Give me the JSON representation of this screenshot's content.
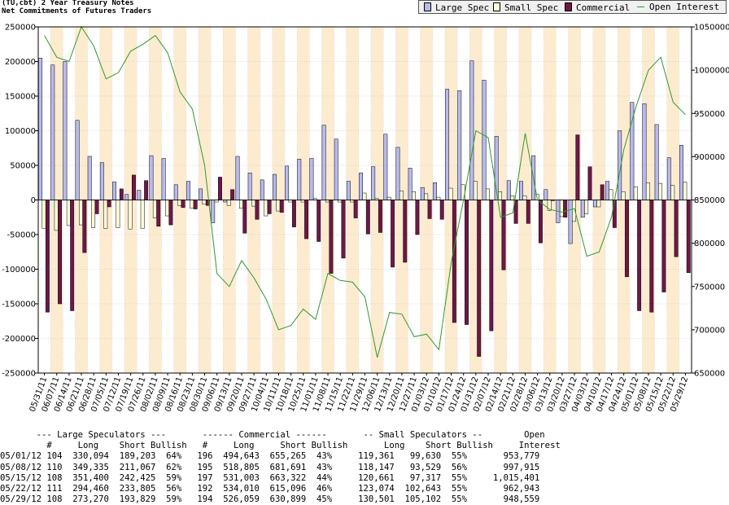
{
  "header": {
    "title": "(TU,cbt) 2 Year Treasury Notes",
    "subtitle": "Net Commitments of Futures Traders"
  },
  "legend": {
    "large_spec": "Large Spec",
    "small_spec": "Small Spec",
    "commercial": "Commercial",
    "open_interest": "Open Interest"
  },
  "colors": {
    "large": "#b8baee",
    "small": "#fffdd8",
    "commercial": "#6e1846",
    "oi": "#2e9a2e",
    "band_a": "#fdebd0",
    "band_b": "#ffffff"
  },
  "chart_data": {
    "type": "bar",
    "categories": [
      "05/31/11",
      "06/07/11",
      "06/14/11",
      "06/21/11",
      "06/28/11",
      "07/05/11",
      "07/12/11",
      "07/19/11",
      "07/26/11",
      "08/02/11",
      "08/09/11",
      "08/16/11",
      "08/23/11",
      "08/30/11",
      "09/06/11",
      "09/13/11",
      "09/20/11",
      "09/27/11",
      "10/04/11",
      "10/11/11",
      "10/18/11",
      "10/25/11",
      "11/01/11",
      "11/08/11",
      "11/15/11",
      "11/22/11",
      "11/29/11",
      "12/06/11",
      "12/13/11",
      "12/20/11",
      "12/27/11",
      "01/03/12",
      "01/10/12",
      "01/17/12",
      "01/24/12",
      "01/31/12",
      "02/07/12",
      "02/14/12",
      "02/21/12",
      "02/28/12",
      "03/06/12",
      "03/13/12",
      "03/20/12",
      "03/27/12",
      "04/03/12",
      "04/10/12",
      "04/17/12",
      "04/24/12",
      "05/01/12",
      "05/08/12",
      "05/15/12",
      "05/22/12",
      "05/29/12"
    ],
    "x_tick_labels": [
      "05/31/11",
      "06/07/11",
      "06/14/11",
      "06/21/11",
      "06/28/11",
      "07/05/11",
      "07/12/11",
      "07/19/11",
      "07/26/11",
      "08/02/11",
      "08/09/11",
      "08/16/11",
      "08/23/11",
      "08/30/11",
      "09/06/11",
      "09/13/11",
      "09/20/11",
      "09/27/11",
      "10/04/11",
      "10/11/11",
      "10/18/11",
      "10/25/11",
      "11/01/11",
      "11/08/11",
      "11/15/11",
      "11/22/11",
      "11/29/11",
      "12/06/11",
      "12/13/11",
      "12/20/11",
      "12/27/11",
      "01/03/12",
      "01/10/12",
      "01/17/12",
      "01/24/12",
      "01/31/12",
      "02/07/12",
      "02/14/12",
      "02/21/12",
      "02/28/12",
      "03/06/12",
      "03/13/12",
      "03/20/12",
      "03/27/12",
      "04/03/12",
      "04/10/12",
      "04/17/12",
      "04/24/12",
      "05/01/12",
      "05/08/12",
      "05/15/12",
      "05/22/12",
      "05/29/12"
    ],
    "series": [
      {
        "name": "Large Spec",
        "axis": "left",
        "values": [
          205000,
          195000,
          200000,
          115000,
          63000,
          54000,
          26000,
          8000,
          14000,
          64000,
          60000,
          22000,
          27000,
          16000,
          -33000,
          -3000,
          63000,
          39000,
          29000,
          37000,
          49000,
          59000,
          60000,
          108000,
          88000,
          27000,
          39000,
          48000,
          95000,
          76000,
          46000,
          18000,
          25000,
          160000,
          158000,
          201000,
          173000,
          92000,
          28000,
          27000,
          64000,
          15000,
          -33000,
          -63000,
          -25000,
          -10000,
          27000,
          100000,
          141000,
          139000,
          109000,
          61000,
          79000
        ]
      },
      {
        "name": "Small Spec",
        "axis": "left",
        "values": [
          -41000,
          -44000,
          -37000,
          -36000,
          -40000,
          -41000,
          -40000,
          -42000,
          -41000,
          -26000,
          -23000,
          -8000,
          -12000,
          -6000,
          -3000,
          -8000,
          -12000,
          -9000,
          -23000,
          -16000,
          -3000,
          -3000,
          2000,
          -3000,
          -3000,
          -3000,
          10000,
          2000,
          4000,
          13000,
          12000,
          9000,
          4000,
          17000,
          22000,
          27000,
          16000,
          12000,
          6000,
          6000,
          8000,
          -15000,
          -24000,
          -31000,
          -20000,
          -10000,
          15000,
          12000,
          19000,
          25000,
          24000,
          21000,
          26000
        ]
      },
      {
        "name": "Commercial",
        "axis": "left",
        "values": [
          -162000,
          -150000,
          -160000,
          -76000,
          -20000,
          -10000,
          16000,
          36000,
          28000,
          -38000,
          -36000,
          -11000,
          -13000,
          -8000,
          33000,
          15000,
          -48000,
          -28000,
          -20000,
          -18000,
          -39000,
          -56000,
          -60000,
          -106000,
          -84000,
          -26000,
          -49000,
          -47000,
          -97000,
          -90000,
          -50000,
          -27000,
          -28000,
          -177000,
          -180000,
          -226000,
          -189000,
          -101000,
          -34000,
          -34000,
          -62000,
          -1000,
          -25000,
          94000,
          48000,
          22000,
          -40000,
          -111000,
          -160000,
          -162000,
          -133000,
          -82000,
          -105000
        ]
      },
      {
        "name": "Open Interest",
        "axis": "right",
        "values": [
          1040000,
          1015000,
          1010000,
          1050000,
          1028000,
          990000,
          997000,
          1022000,
          1030000,
          1040000,
          1020000,
          975000,
          955000,
          890000,
          765000,
          750000,
          780000,
          760000,
          735000,
          700000,
          705000,
          724000,
          712000,
          765000,
          757000,
          755000,
          738000,
          668000,
          720000,
          718000,
          692000,
          695000,
          677000,
          778000,
          850000,
          930000,
          922000,
          830000,
          835000,
          927000,
          850000,
          839000,
          836000,
          840000,
          785000,
          790000,
          830000,
          908000,
          958000,
          1000000,
          1015000,
          963000,
          948559
        ]
      }
    ],
    "ylim_left": [
      -250000,
      250000
    ],
    "ylim_right": [
      650000,
      1050000
    ],
    "y_left_ticks": [
      "250000",
      "200000",
      "150000",
      "100000",
      "50000",
      "0",
      "-50000",
      "-100000",
      "-150000",
      "-200000",
      "-250000"
    ],
    "y_right_ticks": [
      "1050000",
      "1000000",
      "950000",
      "900000",
      "850000",
      "800000",
      "750000",
      "700000",
      "650000"
    ],
    "grid": true,
    "legend_position": "top-right"
  },
  "table": {
    "header1": "       --- Large Speculators ---       ------ Commercial ------       -- Small Speculators --        Open",
    "header2": "         #     Long    Short Bullish   #     Long     Short Bullish       Long    Short Bullish     Interest",
    "rows": [
      "05/01/12 104  330,094  189,203  64%   196  494,643  655,265  43%     119,361   99,630  55%       953,779",
      "05/08/12 110  349,335  211,067  62%   195  518,805  681,691  43%     118,147   93,529  56%       997,915",
      "05/15/12 108  351,400  242,425  59%   197  531,003  663,322  44%     120,661   97,317  55%     1,015,401",
      "05/22/12 111  294,460  233,805  56%   192  534,010  615,096  46%     123,074  102,643  55%       962,943",
      "05/29/12 108  273,270  193,829  59%   194  526,059  630,899  45%     130,501  105,102  55%       948,559"
    ]
  }
}
